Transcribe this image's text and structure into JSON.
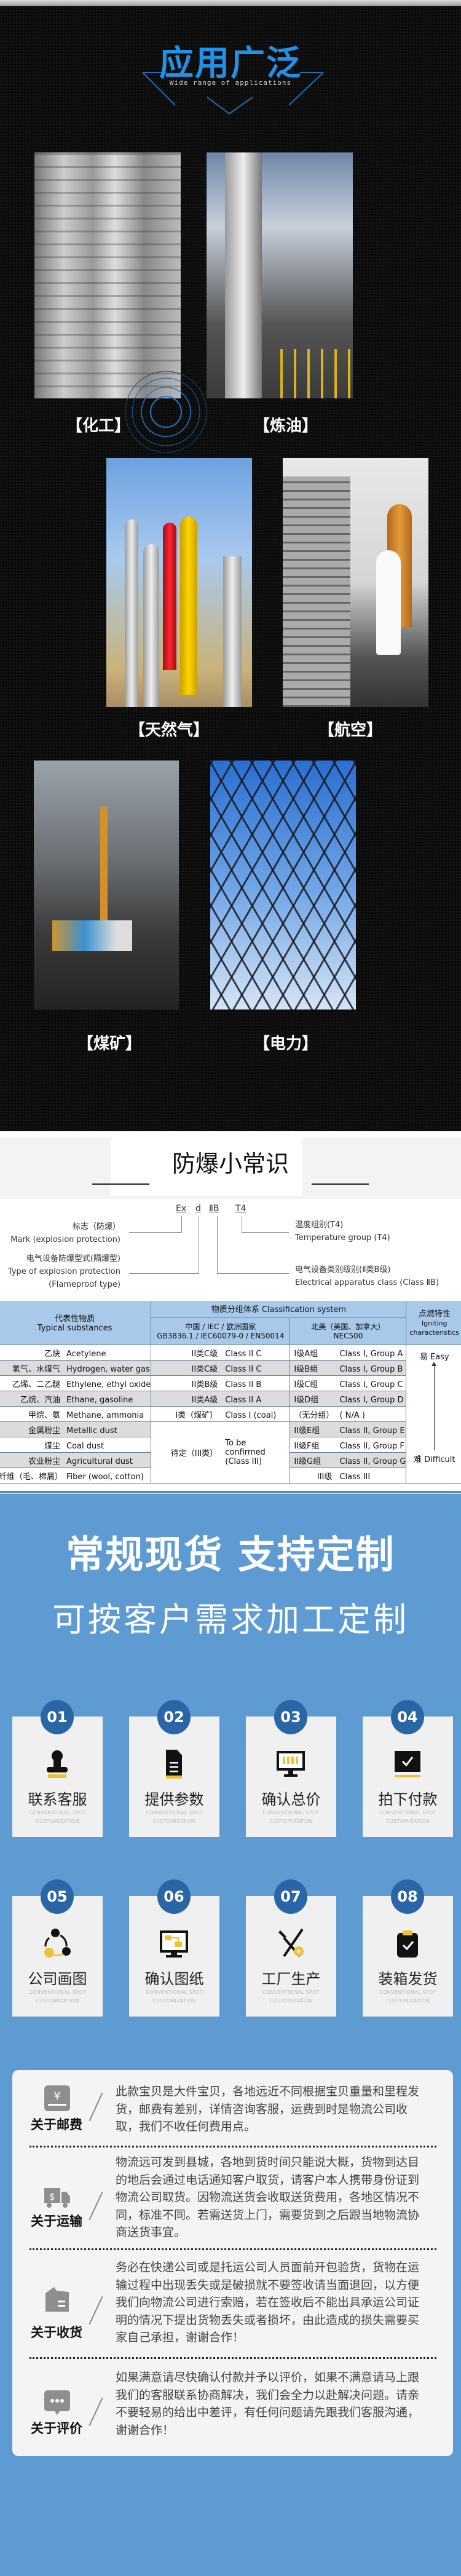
{
  "applications": {
    "title": "应用广泛",
    "subtitle": "Wide range of applications",
    "items": [
      {
        "label": "【化工】"
      },
      {
        "label": "【炼油】"
      },
      {
        "label": "【天然气】"
      },
      {
        "label": "【航空】"
      },
      {
        "label": "【煤矿】"
      },
      {
        "label": "【电力】"
      }
    ]
  },
  "knowledge": {
    "title": "防爆小常识",
    "marking": {
      "ex": "Ex",
      "d": "d",
      "class": "ⅡB",
      "temp": "T4"
    },
    "left_labels": {
      "mark_cn": "标志（防爆）",
      "mark_en": "Mark (explosion protection)",
      "type_cn": "电气设备防爆型式(隔爆型)",
      "type_en": "Type of explosion protection",
      "type_en2": "(Flameproof type)"
    },
    "right_labels": {
      "temp_cn": "温度组别(T4)",
      "temp_en": "Temperature group (T4)",
      "class_cn": "电气设备类别级别(Ⅱ类B级)",
      "class_en": "Electrical apparatus class (Class ⅡB)"
    },
    "table": {
      "h_sub_cn": "代表性物质",
      "h_sub_en": "Typical substances",
      "h_sys": "物质分组体系  Classification system",
      "h_iec_cn": "中国 / IEC / 欧洲国家",
      "h_iec_en": "GB3836.1 / IEC60079-0 / EN50014",
      "h_nec_cn": "北美（美国、加拿大）",
      "h_nec_en": "NEC500",
      "h_ign_cn": "点燃特性",
      "h_ign_en": "Igniting characteristics",
      "easy": "易 Easy",
      "difficult": "难 Difficult",
      "tbc_cn": "待定（III类）",
      "tbc_en": "To be confirmed (Class III)",
      "rows": [
        {
          "cn": "乙炔",
          "en": "Acetylene",
          "iec_cn": "II类C级",
          "iec_en": "Class II C",
          "nec_cn": "I级A组",
          "nec_en": "Class I, Group A"
        },
        {
          "cn": "氢气、水煤气",
          "en": "Hydrogen, water gas",
          "iec_cn": "II类C级",
          "iec_en": "Class II C",
          "nec_cn": "I级B组",
          "nec_en": "Class I, Group B"
        },
        {
          "cn": "乙烯、二乙醚",
          "en": "Ethylene, ethyl oxide",
          "iec_cn": "II类B级",
          "iec_en": "Class II B",
          "nec_cn": "I级C组",
          "nec_en": "Class I, Group C"
        },
        {
          "cn": "乙烷、汽油",
          "en": "Ethane, gasoline",
          "iec_cn": "II类A级",
          "iec_en": "Class II A",
          "nec_cn": "I级D组",
          "nec_en": "Class I, Group D"
        },
        {
          "cn": "甲烷、氨",
          "en": "Methane, ammonia",
          "iec_cn": "I类（煤矿）",
          "iec_en": "Class I (coal)",
          "nec_cn": "（无分组）",
          "nec_en": "( N/A )"
        },
        {
          "cn": "金属粉尘",
          "en": "Metallic dust",
          "nec_cn": "II级E组",
          "nec_en": "Class II, Group E"
        },
        {
          "cn": "煤尘",
          "en": "Coal dust",
          "nec_cn": "II级F组",
          "nec_en": "Class II, Group F"
        },
        {
          "cn": "农业粉尘",
          "en": "Agricultural dust",
          "nec_cn": "II级G组",
          "nec_en": "Class II, Group G"
        },
        {
          "cn": "纤维（毛、棉屑）",
          "en": "Fiber (wool, cotton)",
          "nec_cn": "III级",
          "nec_en": "Class III"
        }
      ]
    }
  },
  "custom": {
    "headline": "常规现货 支持定制",
    "subline": "可按客户需求加工定制",
    "step_sub1": "CONVENTIONAL SPOT",
    "step_sub2": "CUSTOMIZATION",
    "accent": "#2a66a5",
    "icon_accent": "#f0c030",
    "steps": [
      {
        "num": "01",
        "label": "联系客服",
        "icon": "stamp-icon"
      },
      {
        "num": "02",
        "label": "提供参数",
        "icon": "document-icon"
      },
      {
        "num": "03",
        "label": "确认总价",
        "icon": "monitor-icon"
      },
      {
        "num": "04",
        "label": "拍下付款",
        "icon": "checkbox-icon"
      },
      {
        "num": "05",
        "label": "公司画图",
        "icon": "cycle-icon"
      },
      {
        "num": "06",
        "label": "确认图纸",
        "icon": "drawing-monitor-icon"
      },
      {
        "num": "07",
        "label": "工厂生产",
        "icon": "tools-icon"
      },
      {
        "num": "08",
        "label": "装箱发货",
        "icon": "clipboard-check-icon"
      }
    ]
  },
  "info": [
    {
      "label": "关于邮费",
      "icon": "yen-icon",
      "text": "此款宝贝是大件宝贝，各地远近不同根据宝贝重量和里程发货，邮费有差别，详情咨询客服，运费到时是物流公司收取，我们不收任何费用点。"
    },
    {
      "label": "关于运输",
      "icon": "truck-icon",
      "text": "物流远可发到县城，各地到货时间只能说大概，货物到达目的地后会通过电话通知客户取货，请客户本人携带身份证到物流公司取货。因物流送货会收取送货费用，各地区情况不同，标准不同。若需送货上门，需要货到之后跟当地物流协商送货事宜。"
    },
    {
      "label": "关于收货",
      "icon": "package-icon",
      "text": "务必在快递公司或是托运公司人员面前开包验货，货物在运输过程中出现丢失或是破损就不要签收请当面退回，以方便我们向物流公司进行索赔，若在签收后不能出具承运公司证明的情况下提出货物丢失或者损坏，由此造成的损失需要买家自己承担，谢谢合作！"
    },
    {
      "label": "关于评价",
      "icon": "chat-icon",
      "text": "如果满意请尽快确认付款并予以评价，如果不满意请马上跟我们的客服联系协商解决，我们会全力以赴解决问题。请亲不要轻易的给出中差评，有任何问题请先跟我们客服沟通，谢谢合作！"
    }
  ]
}
